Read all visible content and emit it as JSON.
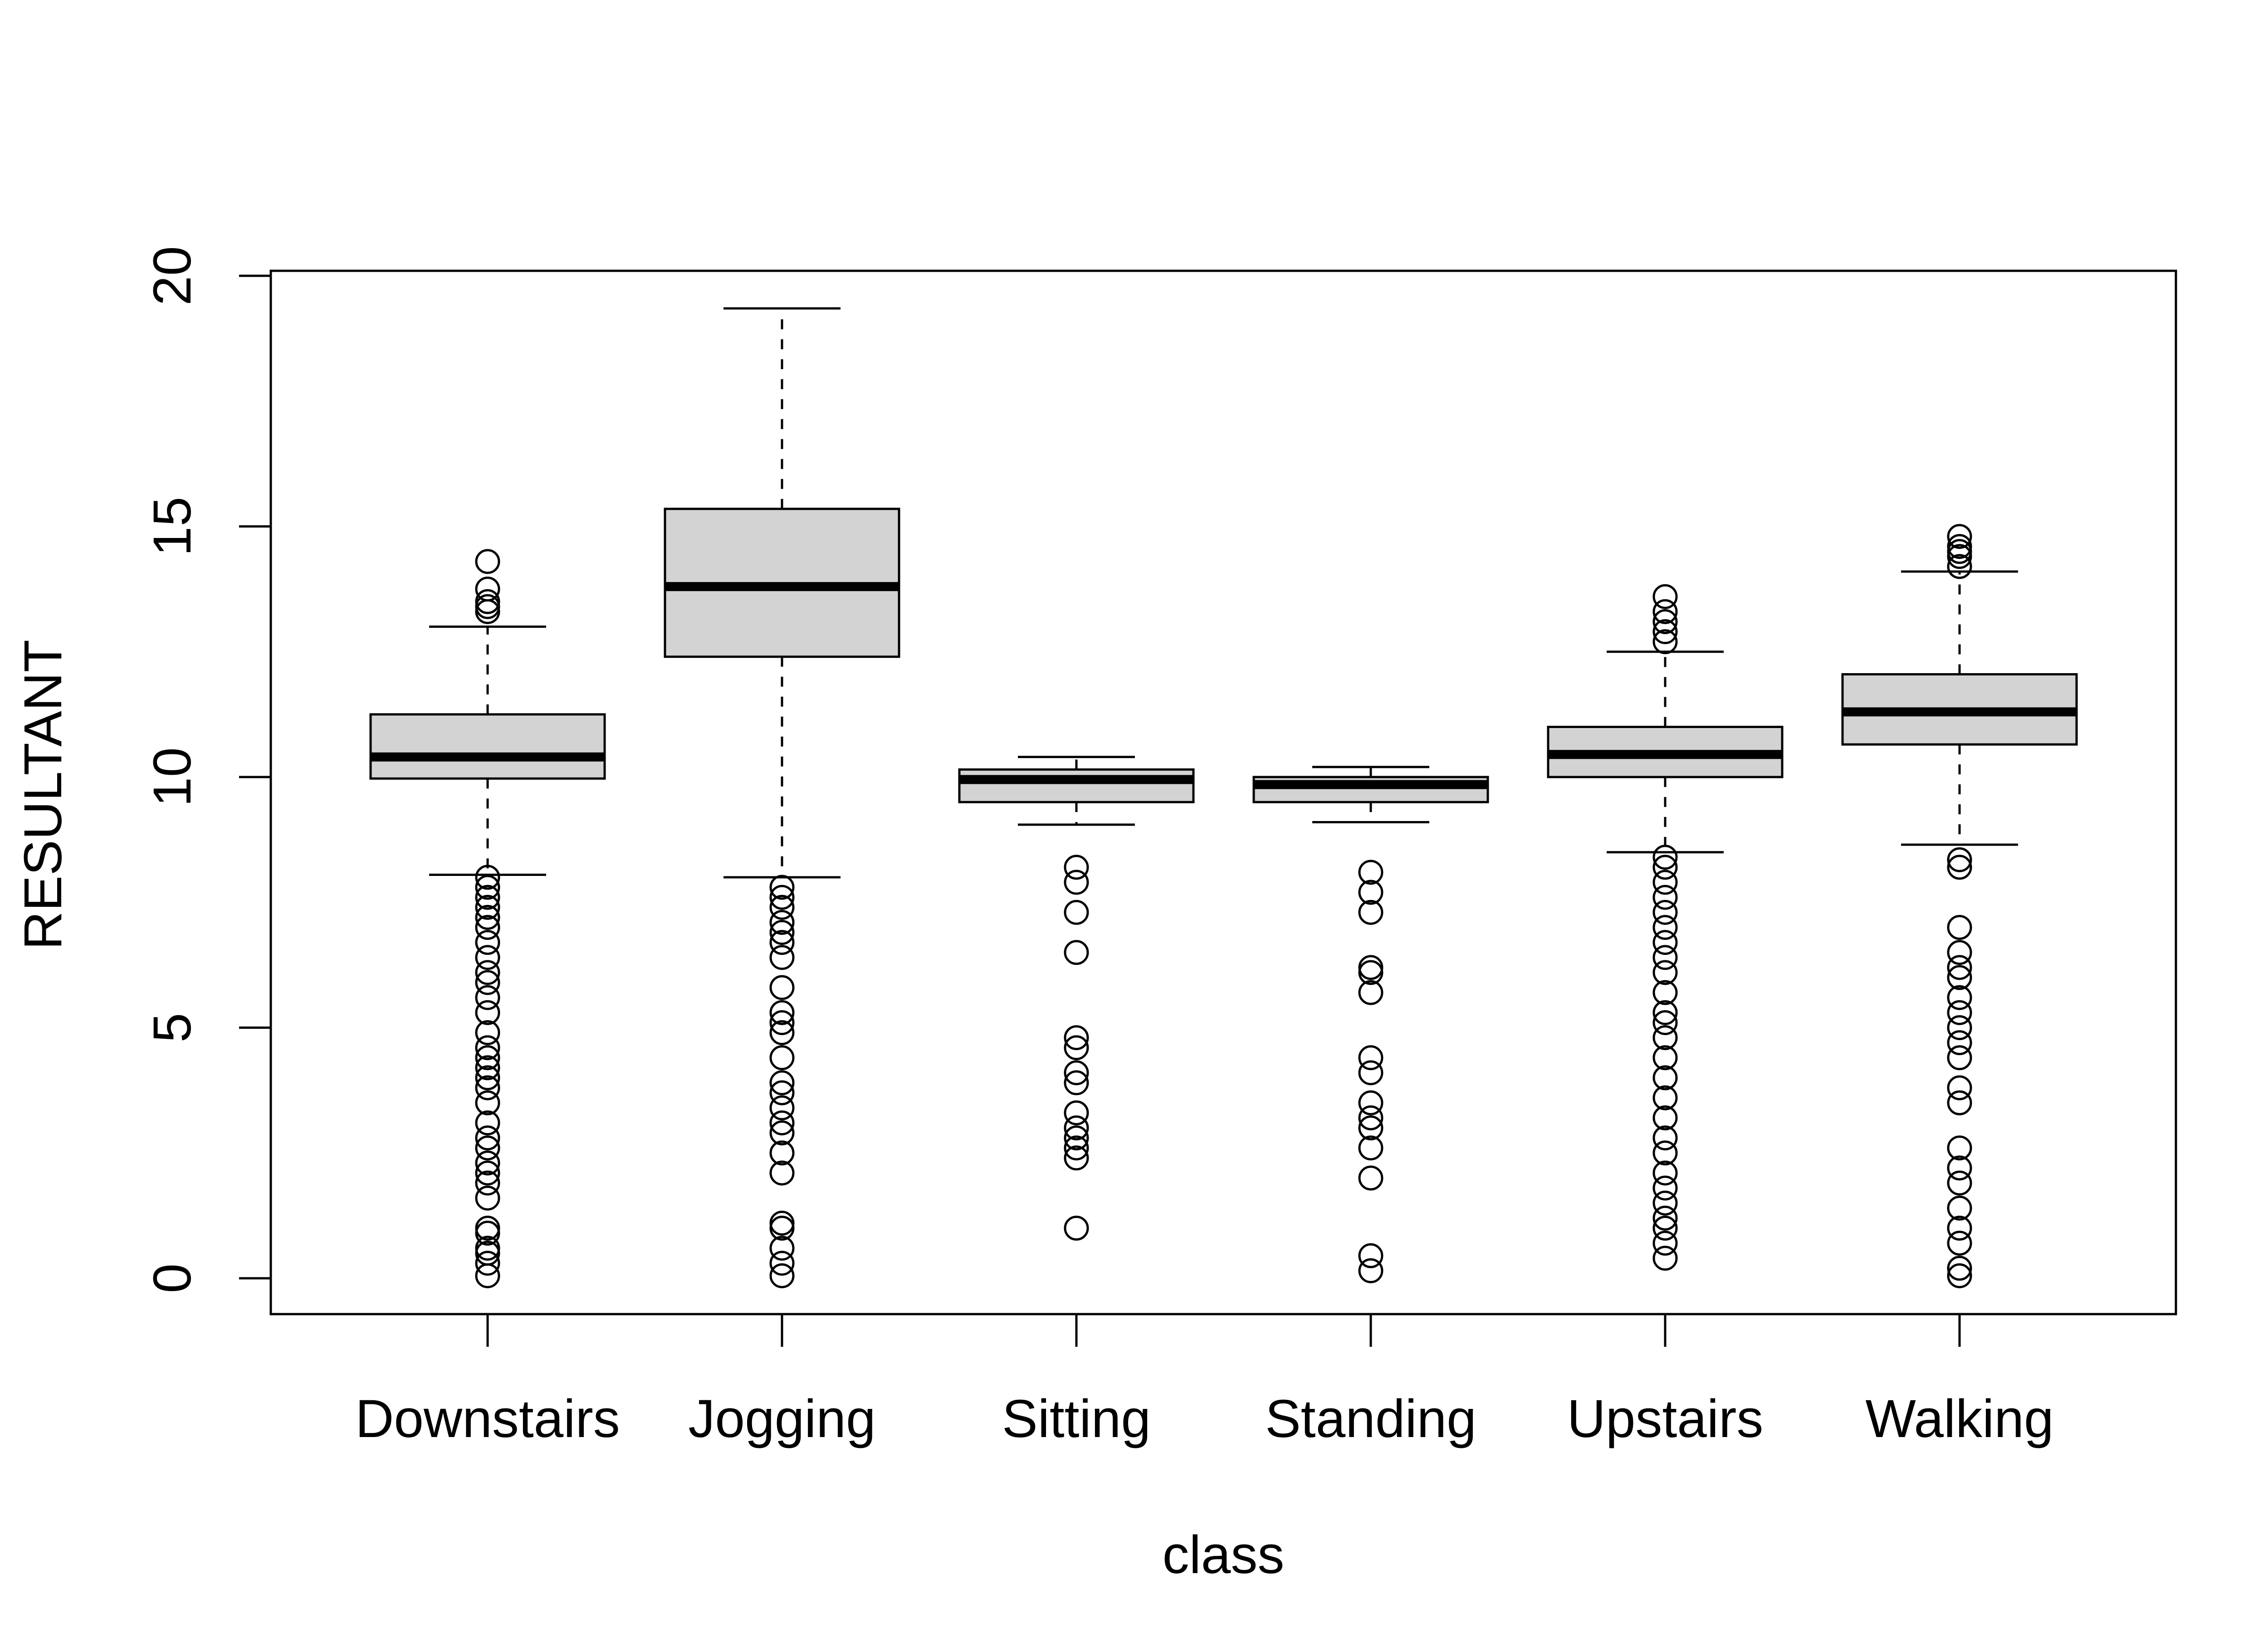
{
  "chart_data": {
    "type": "boxplot",
    "xlabel": "class",
    "ylabel": "RESULTANT",
    "ylim": [
      0,
      20
    ],
    "yticks": [
      0,
      5,
      10,
      15,
      20
    ],
    "grid": false,
    "categories": [
      "Downstairs",
      "Jogging",
      "Sitting",
      "Standing",
      "Upstairs",
      "Walking"
    ],
    "series": [
      {
        "category": "Downstairs",
        "whisker_low": 8.05,
        "q1": 9.97,
        "median": 10.4,
        "q3": 11.25,
        "whisker_high": 13.0,
        "outliers": [
          13.3,
          13.4,
          13.5,
          13.75,
          14.3,
          0.05,
          0.3,
          0.5,
          0.6,
          0.9,
          1.0,
          1.6,
          1.9,
          2.1,
          2.3,
          2.6,
          2.8,
          3.1,
          3.5,
          3.8,
          4.0,
          4.2,
          4.4,
          4.6,
          4.9,
          5.3,
          5.6,
          5.9,
          6.1,
          6.4,
          6.7,
          7.0,
          7.2,
          7.4,
          7.6,
          7.8,
          8.0
        ]
      },
      {
        "category": "Jogging",
        "whisker_low": 8.0,
        "q1": 12.4,
        "median": 13.8,
        "q3": 15.35,
        "whisker_high": 19.35,
        "outliers": [
          0.05,
          0.3,
          0.6,
          1.0,
          1.1,
          2.1,
          2.5,
          2.9,
          3.1,
          3.4,
          3.7,
          3.9,
          4.4,
          4.9,
          5.1,
          5.3,
          5.8,
          6.4,
          6.7,
          6.9,
          7.1,
          7.4,
          7.6,
          7.8
        ]
      },
      {
        "category": "Sitting",
        "whisker_low": 9.05,
        "q1": 9.5,
        "median": 9.95,
        "q3": 10.15,
        "whisker_high": 10.4,
        "outliers": [
          1.0,
          2.4,
          2.6,
          2.8,
          3.0,
          3.3,
          3.9,
          4.1,
          4.6,
          4.8,
          6.5,
          7.3,
          7.9,
          8.2
        ]
      },
      {
        "category": "Standing",
        "whisker_low": 9.1,
        "q1": 9.5,
        "median": 9.85,
        "q3": 10.0,
        "whisker_high": 10.2,
        "outliers": [
          0.15,
          0.45,
          2.0,
          2.6,
          3.0,
          3.2,
          3.5,
          4.1,
          4.4,
          5.7,
          6.1,
          6.2,
          7.3,
          7.7,
          8.1
        ]
      },
      {
        "category": "Upstairs",
        "whisker_low": 8.5,
        "q1": 10.0,
        "median": 10.45,
        "q3": 11.0,
        "whisker_high": 12.5,
        "outliers": [
          12.7,
          12.9,
          13.1,
          13.3,
          13.6,
          0.4,
          0.7,
          1.0,
          1.2,
          1.5,
          1.8,
          2.1,
          2.5,
          2.8,
          3.2,
          3.6,
          4.0,
          4.4,
          4.8,
          5.1,
          5.3,
          5.7,
          6.1,
          6.4,
          6.7,
          7.0,
          7.3,
          7.6,
          7.9,
          8.2,
          8.4
        ]
      },
      {
        "category": "Walking",
        "whisker_low": 8.65,
        "q1": 10.65,
        "median": 11.3,
        "q3": 12.05,
        "whisker_high": 14.1,
        "outliers": [
          14.2,
          14.4,
          14.5,
          14.6,
          14.8,
          8.2,
          8.35,
          0.05,
          0.2,
          0.7,
          1.0,
          1.4,
          1.9,
          2.2,
          2.6,
          3.5,
          3.8,
          4.4,
          4.7,
          5.0,
          5.3,
          5.6,
          6.0,
          6.2,
          6.5,
          7.0
        ]
      }
    ]
  }
}
